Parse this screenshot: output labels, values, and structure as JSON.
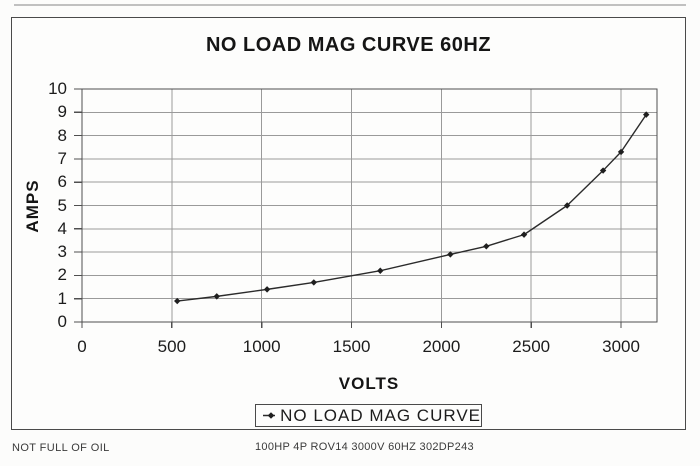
{
  "title": "NO LOAD MAG CURVE 60HZ",
  "colors": {
    "line": "#2b2b2b",
    "marker": "#1f1f1f",
    "grid": "#9a9a9a",
    "axis_border": "#4f4f4f",
    "text": "#1c1c1c"
  },
  "legend": {
    "label": "NO LOAD MAG CURVE",
    "marker_icon": "line-diamond-marker"
  },
  "footer": {
    "left_note": "NOT FULL OF OIL",
    "center_note": "100HP 4P ROV14 3000V 60HZ 302DP243"
  },
  "chart_data": {
    "type": "line",
    "title": "NO LOAD MAG CURVE 60HZ",
    "xlabel": "VOLTS",
    "ylabel": "AMPS",
    "x": [
      530,
      750,
      1030,
      1290,
      1660,
      2050,
      2250,
      2460,
      2700,
      2900,
      3000,
      3140
    ],
    "y": [
      0.9,
      1.1,
      1.4,
      1.7,
      2.2,
      2.9,
      3.25,
      3.75,
      5.0,
      6.5,
      7.3,
      8.9
    ],
    "xlim": [
      0,
      3200
    ],
    "ylim": [
      0,
      10
    ],
    "x_ticks": [
      0,
      500,
      1000,
      1500,
      2000,
      2500,
      3000
    ],
    "y_ticks": [
      0,
      1,
      2,
      3,
      4,
      5,
      6,
      7,
      8,
      9,
      10
    ],
    "grid": true,
    "marker": "diamond",
    "legend": [
      "NO LOAD MAG CURVE"
    ],
    "legend_position": "bottom"
  }
}
